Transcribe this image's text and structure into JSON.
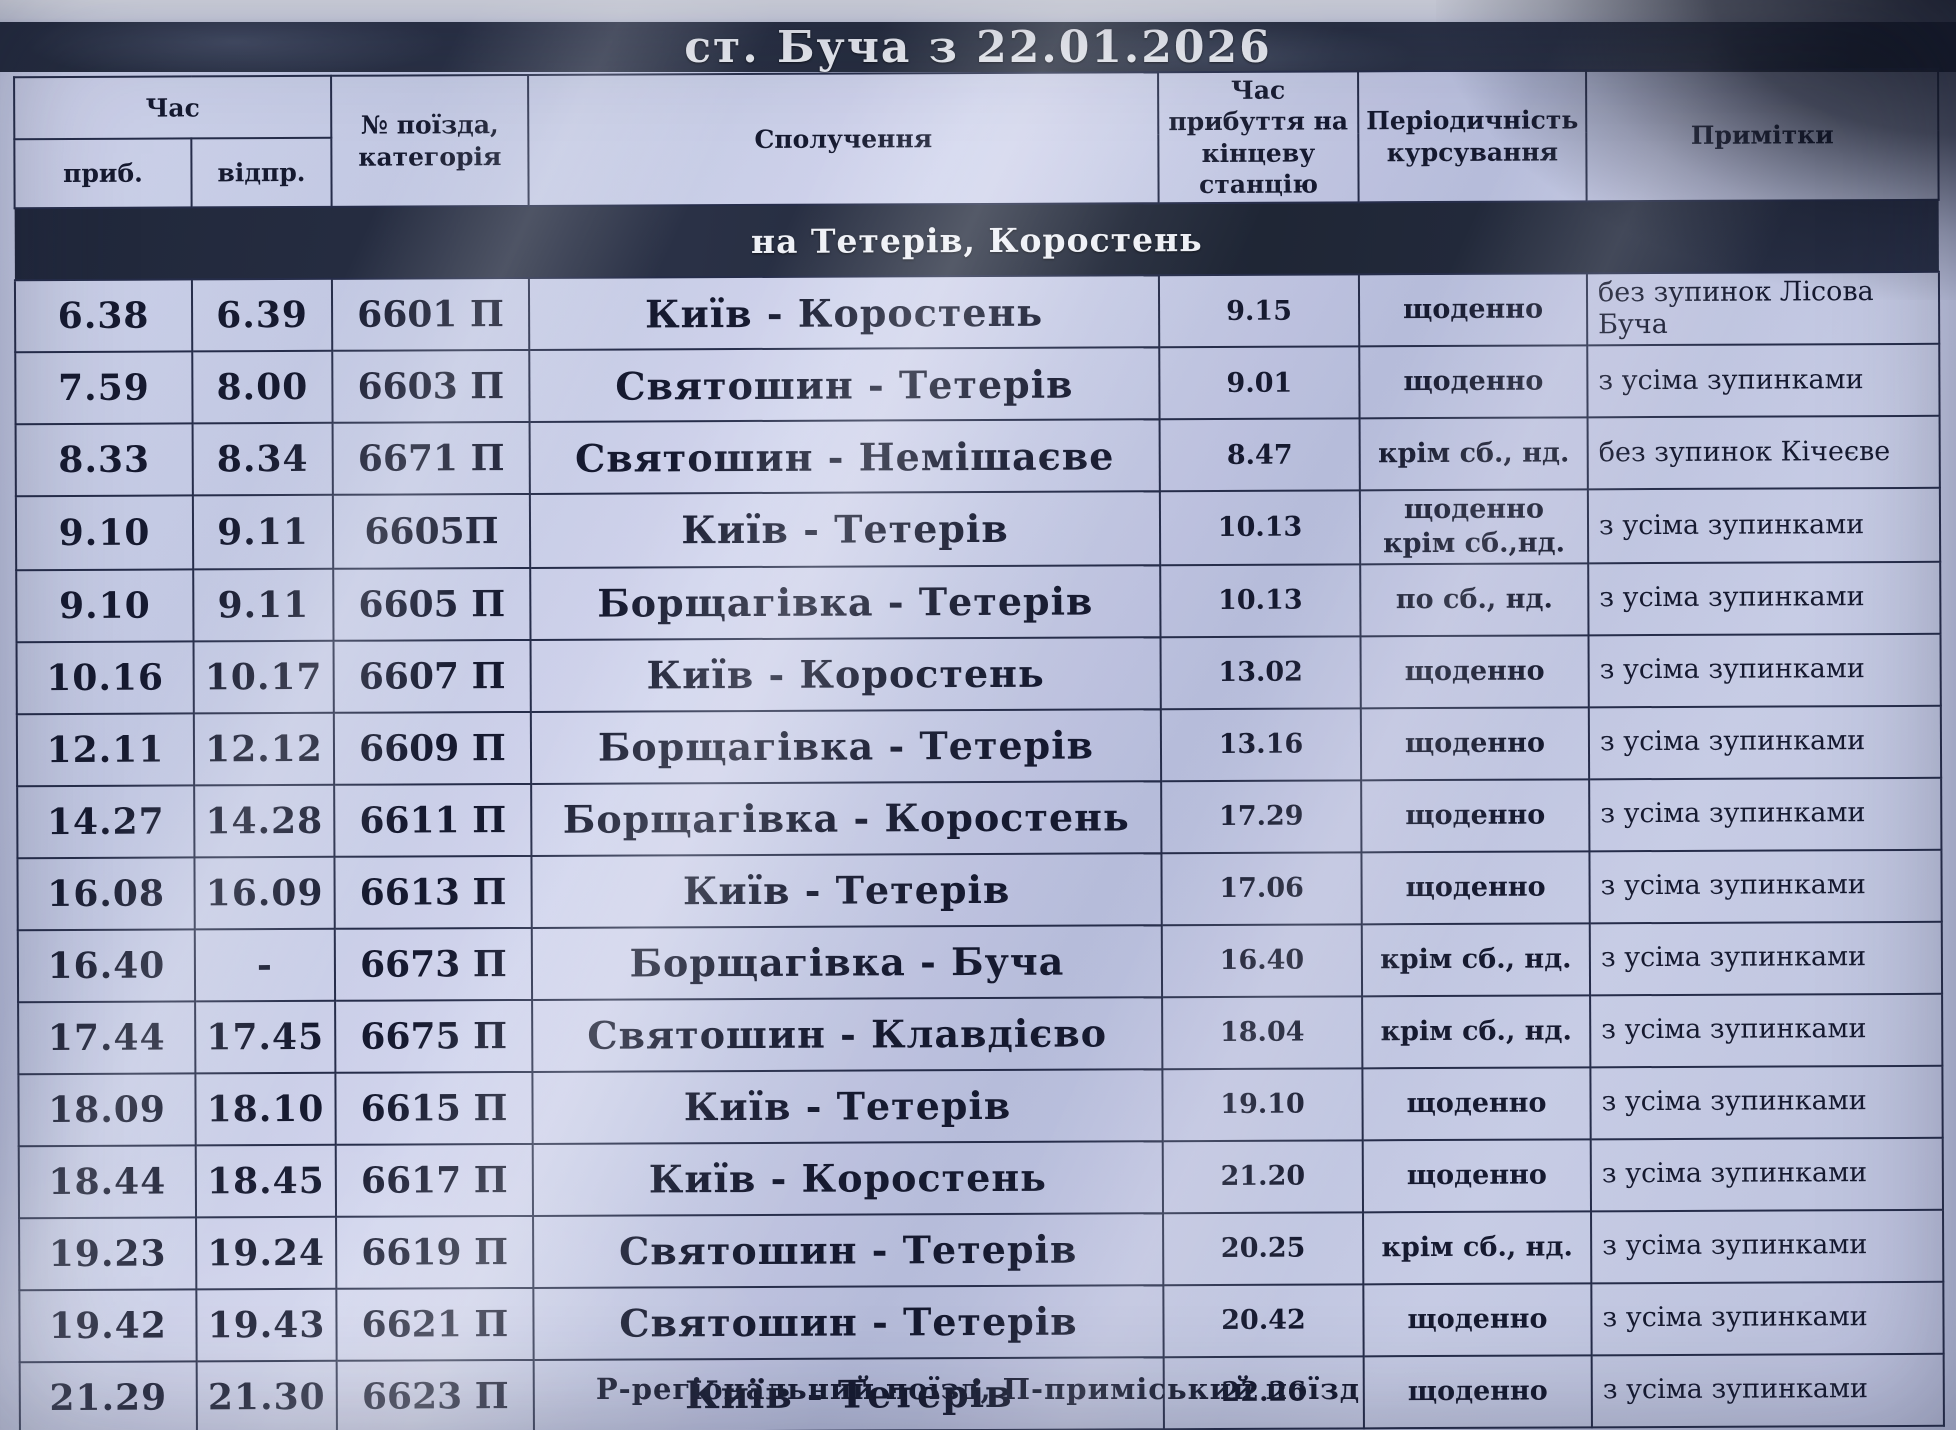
{
  "title": "ст. Буча з 22.01.2026",
  "header": {
    "time_group": "Час",
    "arrival": "приб.",
    "departure": "відпр.",
    "train_number": "№ поїзда, категорія",
    "route": "Сполучення",
    "final_arrival": "Час прибуття на кінцеву станцію",
    "periodicity": "Періодичність курсування",
    "notes": "Примітки"
  },
  "section_title": "на Тетерів, Коростень",
  "rows": [
    {
      "arr": "6.38",
      "dep": "6.39",
      "train": "6601 П",
      "route": "Київ - Коростень",
      "final": "9.15",
      "period": "щоденно",
      "notes": "без зупинок Лісова Буча"
    },
    {
      "arr": "7.59",
      "dep": "8.00",
      "train": "6603 П",
      "route": "Святошин - Тетерів",
      "final": "9.01",
      "period": "щоденно",
      "notes": "з усіма зупинками"
    },
    {
      "arr": "8.33",
      "dep": "8.34",
      "train": "6671 П",
      "route": "Святошин - Немішаєве",
      "final": "8.47",
      "period": "крім сб., нд.",
      "notes": "без зупинок Кічеєве"
    },
    {
      "arr": "9.10",
      "dep": "9.11",
      "train": "6605П",
      "route": "Київ - Тетерів",
      "final": "10.13",
      "period": "щоденно крім сб.,нд.",
      "notes": "з усіма зупинками"
    },
    {
      "arr": "9.10",
      "dep": "9.11",
      "train": "6605 П",
      "route": "Борщагівка - Тетерів",
      "final": "10.13",
      "period": "по сб., нд.",
      "notes": "з усіма зупинками"
    },
    {
      "arr": "10.16",
      "dep": "10.17",
      "train": "6607 П",
      "route": "Київ - Коростень",
      "final": "13.02",
      "period": "щоденно",
      "notes": "з усіма зупинками"
    },
    {
      "arr": "12.11",
      "dep": "12.12",
      "train": "6609 П",
      "route": "Борщагівка - Тетерів",
      "final": "13.16",
      "period": "щоденно",
      "notes": "з усіма зупинками"
    },
    {
      "arr": "14.27",
      "dep": "14.28",
      "train": "6611 П",
      "route": "Борщагівка - Коростень",
      "final": "17.29",
      "period": "щоденно",
      "notes": "з усіма зупинками"
    },
    {
      "arr": "16.08",
      "dep": "16.09",
      "train": "6613 П",
      "route": "Київ - Тетерів",
      "final": "17.06",
      "period": "щоденно",
      "notes": "з усіма зупинками"
    },
    {
      "arr": "16.40",
      "dep": "-",
      "train": "6673 П",
      "route": "Борщагівка - Буча",
      "final": "16.40",
      "period": "крім сб., нд.",
      "notes": "з усіма зупинками"
    },
    {
      "arr": "17.44",
      "dep": "17.45",
      "train": "6675 П",
      "route": "Святошин - Клавдієво",
      "final": "18.04",
      "period": "крім сб., нд.",
      "notes": "з усіма зупинками"
    },
    {
      "arr": "18.09",
      "dep": "18.10",
      "train": "6615 П",
      "route": "Київ - Тетерів",
      "final": "19.10",
      "period": "щоденно",
      "notes": "з усіма зупинками"
    },
    {
      "arr": "18.44",
      "dep": "18.45",
      "train": "6617 П",
      "route": "Київ - Коростень",
      "final": "21.20",
      "period": "щоденно",
      "notes": "з усіма зупинками"
    },
    {
      "arr": "19.23",
      "dep": "19.24",
      "train": "6619 П",
      "route": "Святошин - Тетерів",
      "final": "20.25",
      "period": "крім сб., нд.",
      "notes": "з усіма зупинками"
    },
    {
      "arr": "19.42",
      "dep": "19.43",
      "train": "6621 П",
      "route": "Святошин - Тетерів",
      "final": "20.42",
      "period": "щоденно",
      "notes": "з усіма зупинками"
    },
    {
      "arr": "21.29",
      "dep": "21.30",
      "train": "6623 П",
      "route": "Київ - Тетерів",
      "final": "22.26",
      "period": "щоденно",
      "notes": "з усіма зупинками"
    }
  ],
  "footer_note": "Р-регіональний поїзд, П-приміський поїзд",
  "colors": {
    "band_dark": "#232a3c",
    "paper": "#c3c8e2",
    "text": "#161a30",
    "border": "#262d4a",
    "band_text": "#e9ebf2"
  }
}
